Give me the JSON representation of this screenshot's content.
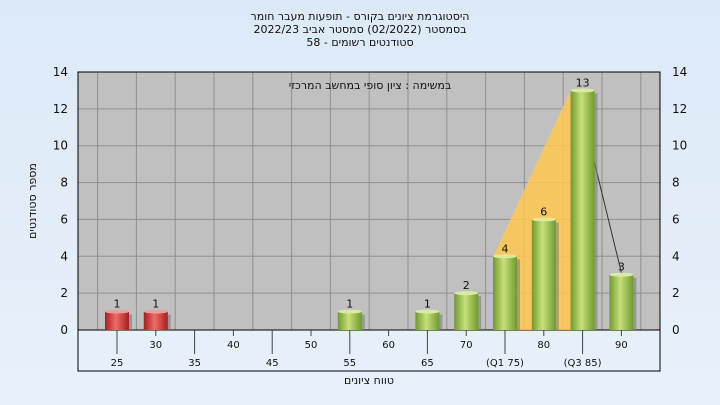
{
  "header": {
    "title_line1": "היסטוגרמת ציונים בקורס - תופעות מעבר חומר",
    "title_line2": "בסמסטר  (02/2022)  סמסטר אביב 2022/23",
    "title_line3": "סטודנטים רשומים - 58"
  },
  "colors": {
    "plot_bg": "#c0c0c0",
    "grid": "#8f8f8f",
    "fail_bar": "#d63c3c",
    "pass_bar": "#93c047",
    "quartile_band": "#ffc850",
    "outline": "#000000"
  },
  "chart_data": {
    "type": "bar",
    "title": "היסטוגרמת ציונים בקורס - תופעות מעבר חומר",
    "xlabel": "טווח ציונים",
    "ylabel": "מספר סטודנטים",
    "ylim": [
      0,
      14
    ],
    "yticks": [
      0,
      2,
      4,
      6,
      8,
      10,
      12,
      14
    ],
    "grid": true,
    "annotation": "במשימה : ציון סופי במחשב המרכזי",
    "categories": [
      "25",
      "30",
      "35",
      "40",
      "45",
      "50",
      "55",
      "60",
      "65",
      "70",
      "(Q1 75)",
      "80",
      "(Q3 85)",
      "90"
    ],
    "values": [
      1,
      1,
      0,
      0,
      0,
      0,
      1,
      0,
      1,
      2,
      4,
      6,
      13,
      3
    ],
    "fail_threshold": 55,
    "quartile_band": {
      "from": "(Q1 75)",
      "to": "(Q3 85)"
    }
  }
}
